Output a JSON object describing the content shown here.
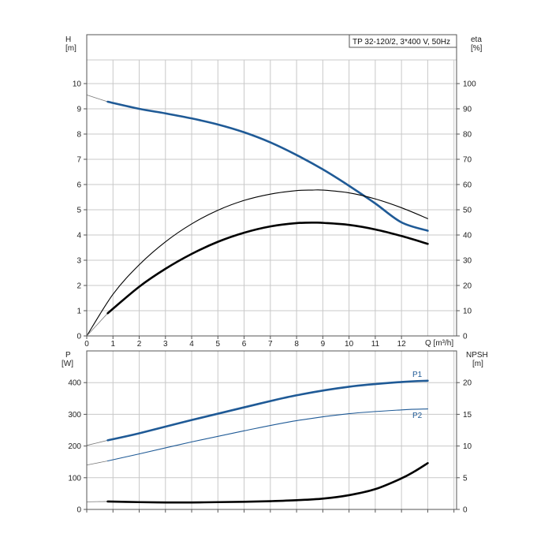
{
  "chart_data": [
    {
      "type": "line",
      "panel": "top",
      "title": "TP 32-120/2, 3*400 V, 50Hz",
      "xlabel": "Q [m³/h]",
      "ylabel_left": {
        "name": "H",
        "unit": "[m]"
      },
      "ylabel_right": {
        "name": "eta",
        "unit": "[%]"
      },
      "xlim": [
        0,
        14.1
      ],
      "ylim_left": [
        0,
        11
      ],
      "ylim_right": [
        0,
        110
      ],
      "xticks": [
        0,
        1,
        2,
        3,
        4,
        5,
        6,
        7,
        8,
        9,
        10,
        11,
        12
      ],
      "yticks_left": [
        0,
        1,
        2,
        3,
        4,
        5,
        6,
        7,
        8,
        9,
        10
      ],
      "yticks_right": [
        0,
        10,
        20,
        30,
        40,
        50,
        60,
        70,
        80,
        90,
        100
      ],
      "grid": true,
      "series": [
        {
          "axis": "left",
          "color": "#1f5a96",
          "style": "thick",
          "extension": [
            [
              0,
              9.55
            ],
            [
              0.8,
              9.28
            ]
          ],
          "points": [
            [
              0.8,
              9.28
            ],
            [
              2,
              9.0
            ],
            [
              3,
              8.82
            ],
            [
              4,
              8.62
            ],
            [
              5,
              8.38
            ],
            [
              6,
              8.07
            ],
            [
              7,
              7.67
            ],
            [
              8,
              7.17
            ],
            [
              9,
              6.6
            ],
            [
              10,
              5.95
            ],
            [
              11,
              5.25
            ],
            [
              12,
              4.5
            ],
            [
              13,
              4.17
            ]
          ]
        },
        {
          "axis": "right",
          "color": "#000000",
          "style": "thin",
          "points": [
            [
              0,
              0
            ],
            [
              1,
              16.5
            ],
            [
              2,
              28.2
            ],
            [
              3,
              37.3
            ],
            [
              4,
              44.4
            ],
            [
              5,
              49.8
            ],
            [
              6,
              53.7
            ],
            [
              7,
              56.2
            ],
            [
              8,
              57.6
            ],
            [
              8.6,
              57.8
            ],
            [
              9,
              57.8
            ],
            [
              10,
              56.7
            ],
            [
              11,
              54.3
            ],
            [
              12,
              50.8
            ],
            [
              13,
              46.5
            ]
          ]
        },
        {
          "axis": "right",
          "color": "#000000",
          "style": "thick",
          "extension": [
            [
              0,
              0
            ],
            [
              0.8,
              9.0
            ]
          ],
          "points": [
            [
              0.8,
              9.0
            ],
            [
              2,
              19.5
            ],
            [
              3,
              26.6
            ],
            [
              4,
              32.5
            ],
            [
              5,
              37.3
            ],
            [
              6,
              40.9
            ],
            [
              7,
              43.4
            ],
            [
              8,
              44.7
            ],
            [
              8.7,
              44.9
            ],
            [
              9,
              44.8
            ],
            [
              10,
              44.0
            ],
            [
              11,
              42.2
            ],
            [
              12,
              39.6
            ],
            [
              13,
              36.5
            ]
          ]
        }
      ]
    },
    {
      "type": "line",
      "panel": "bottom",
      "ylabel_left": {
        "name": "P",
        "unit": "[W]"
      },
      "ylabel_right": {
        "name": "NPSH",
        "unit": "[m]"
      },
      "xlim": [
        0,
        14.1
      ],
      "ylim_left": [
        0,
        500
      ],
      "ylim_right": [
        0,
        25
      ],
      "yticks_left": [
        0,
        100,
        200,
        300,
        400
      ],
      "yticks_right": [
        0,
        5,
        10,
        15,
        20
      ],
      "grid": true,
      "series": [
        {
          "name": "P1",
          "axis": "left",
          "color": "#1f5a96",
          "style": "thick",
          "extension": [
            [
              0,
              202
            ],
            [
              0.8,
              218
            ]
          ],
          "points": [
            [
              0.8,
              218
            ],
            [
              2,
              240
            ],
            [
              4,
              282
            ],
            [
              6,
              322
            ],
            [
              8,
              360
            ],
            [
              10,
              387
            ],
            [
              12,
              402
            ],
            [
              13,
              406
            ]
          ]
        },
        {
          "name": "P2",
          "axis": "left",
          "color": "#1f5a96",
          "style": "thin",
          "extension": [
            [
              0,
              140
            ],
            [
              0.8,
              153
            ]
          ],
          "points": [
            [
              0.8,
              153
            ],
            [
              2,
              175
            ],
            [
              4,
              213
            ],
            [
              6,
              248
            ],
            [
              8,
              280
            ],
            [
              10,
              302
            ],
            [
              12,
              314
            ],
            [
              13,
              317
            ]
          ]
        },
        {
          "axis": "right",
          "color": "#000000",
          "style": "thick",
          "extension": [
            [
              0,
              1.2
            ],
            [
              0.8,
              1.25
            ]
          ],
          "points": [
            [
              0.8,
              1.25
            ],
            [
              2,
              1.15
            ],
            [
              3,
              1.1
            ],
            [
              4,
              1.1
            ],
            [
              5,
              1.15
            ],
            [
              6,
              1.2
            ],
            [
              7,
              1.3
            ],
            [
              8,
              1.45
            ],
            [
              9,
              1.7
            ],
            [
              10,
              2.25
            ],
            [
              11,
              3.2
            ],
            [
              12,
              4.9
            ],
            [
              12.5,
              6.0
            ],
            [
              13,
              7.3
            ]
          ]
        }
      ]
    }
  ]
}
